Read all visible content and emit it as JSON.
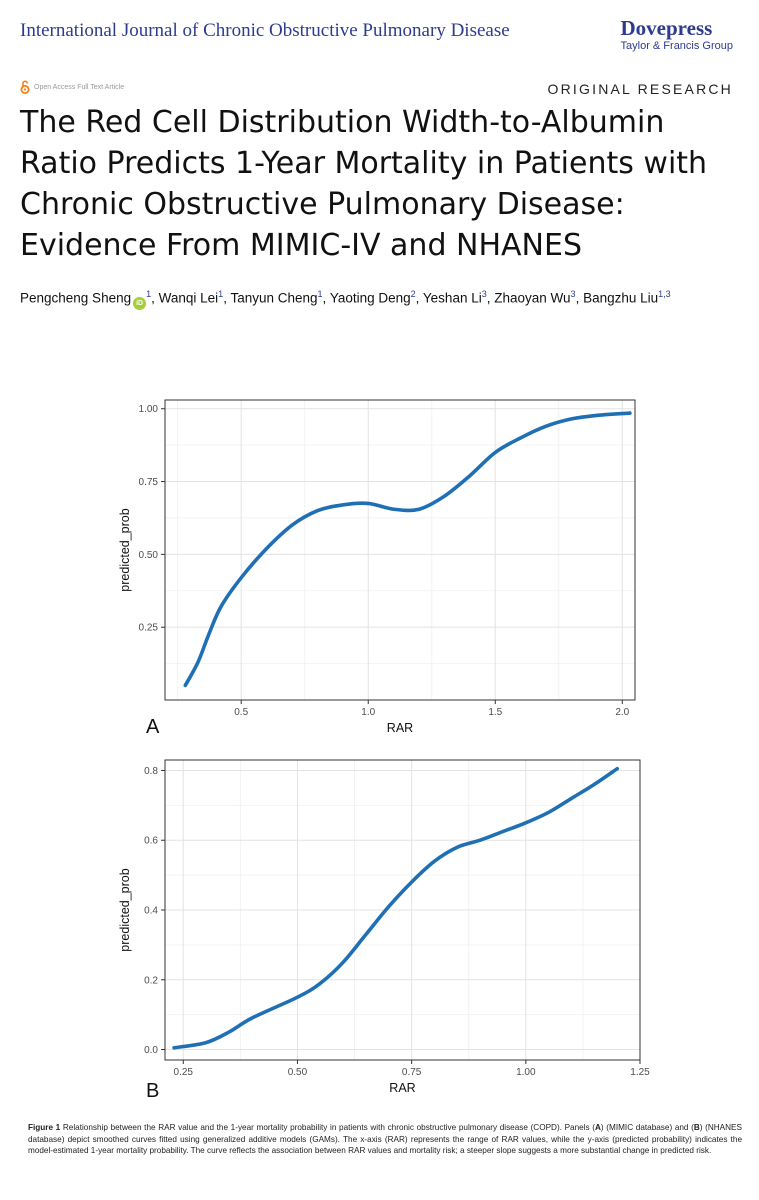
{
  "header": {
    "journal_title": "International Journal of Chronic Obstructive Pulmonary Disease",
    "publisher_brand": "Dovepress",
    "publisher_group": "Taylor & Francis Group",
    "open_access": "Open Access Full Text Article",
    "section": "ORIGINAL RESEARCH"
  },
  "article": {
    "title": "The Red Cell Distribution Width-to-Albumin Ratio Predicts 1-Year Mortality in Patients with Chronic Obstructive Pulmonary Disease: Evidence From MIMIC-IV and NHANES",
    "authors": [
      {
        "name": "Pengcheng Sheng",
        "aff": "1",
        "orcid": true
      },
      {
        "name": "Wanqi Lei",
        "aff": "1"
      },
      {
        "name": "Tanyun Cheng",
        "aff": "1"
      },
      {
        "name": "Yaoting Deng",
        "aff": "2"
      },
      {
        "name": "Yeshan Li",
        "aff": "3"
      },
      {
        "name": "Zhaoyan Wu",
        "aff": "3"
      },
      {
        "name": "Bangzhu Liu",
        "aff": "1,3"
      }
    ],
    "orcid_label": "iD"
  },
  "chart_data": [
    {
      "type": "line",
      "panel_label": "A",
      "xlabel": "RAR",
      "ylabel": "predicted_prob",
      "xlim": [
        0.2,
        2.05
      ],
      "ylim": [
        0.0,
        1.03
      ],
      "xticks": [
        0.5,
        1.0,
        1.5,
        2.0
      ],
      "xtick_labels": [
        "0.5",
        "1.0",
        "1.5",
        "2.0"
      ],
      "yticks": [
        0.25,
        0.5,
        0.75,
        1.0
      ],
      "ytick_labels": [
        "0.25",
        "0.50",
        "0.75",
        "1.00"
      ],
      "grid": true,
      "color": "#1f6fb5",
      "series": [
        {
          "name": "predicted_prob",
          "x": [
            0.28,
            0.33,
            0.37,
            0.42,
            0.5,
            0.6,
            0.7,
            0.8,
            0.9,
            1.0,
            1.1,
            1.2,
            1.3,
            1.4,
            1.5,
            1.6,
            1.7,
            1.8,
            1.9,
            2.03
          ],
          "y": [
            0.05,
            0.13,
            0.22,
            0.32,
            0.42,
            0.52,
            0.6,
            0.65,
            0.67,
            0.675,
            0.655,
            0.655,
            0.7,
            0.77,
            0.85,
            0.9,
            0.94,
            0.965,
            0.977,
            0.985
          ]
        }
      ]
    },
    {
      "type": "line",
      "panel_label": "B",
      "xlabel": "RAR",
      "ylabel": "predicted_prob",
      "xlim": [
        0.21,
        1.25
      ],
      "ylim": [
        -0.03,
        0.83
      ],
      "xticks": [
        0.25,
        0.5,
        0.75,
        1.0,
        1.25
      ],
      "xtick_labels": [
        "0.25",
        "0.50",
        "0.75",
        "1.00",
        "1.25"
      ],
      "yticks": [
        0.0,
        0.2,
        0.4,
        0.6,
        0.8
      ],
      "ytick_labels": [
        "0.0",
        "0.2",
        "0.4",
        "0.6",
        "0.8"
      ],
      "grid": true,
      "color": "#1f6fb5",
      "series": [
        {
          "name": "predicted_prob",
          "x": [
            0.23,
            0.3,
            0.35,
            0.4,
            0.5,
            0.55,
            0.6,
            0.65,
            0.7,
            0.75,
            0.8,
            0.85,
            0.9,
            0.95,
            1.0,
            1.05,
            1.1,
            1.15,
            1.2
          ],
          "y": [
            0.005,
            0.02,
            0.05,
            0.09,
            0.15,
            0.19,
            0.25,
            0.33,
            0.41,
            0.48,
            0.54,
            0.58,
            0.6,
            0.625,
            0.65,
            0.68,
            0.72,
            0.76,
            0.805
          ]
        }
      ]
    }
  ],
  "figure": {
    "label": "Figure 1",
    "caption_parts": [
      {
        "text": "Relationship between the RAR value and the 1-year mortality probability in patients with chronic obstructive pulmonary disease (COPD). Panels (",
        "bold": false
      },
      {
        "text": "A",
        "bold": true
      },
      {
        "text": ") (MIMIC database) and (",
        "bold": false
      },
      {
        "text": "B",
        "bold": true
      },
      {
        "text": ") (NHANES database) depict smoothed curves fitted using generalized additive models (GAMs). The x-axis (RAR) represents the range of RAR values, while the y-axis (predicted probability) indicates the model-estimated 1-year mortality probability. The curve reflects the association between RAR values and mortality risk; a steeper slope suggests a more substantial change in predicted risk.",
        "bold": false
      }
    ]
  }
}
